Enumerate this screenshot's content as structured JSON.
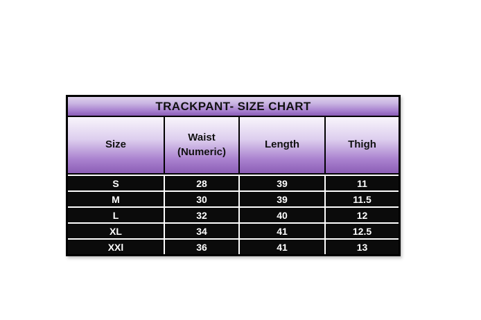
{
  "chart_data": {
    "type": "table",
    "title": "TRACKPANT- SIZE CHART",
    "columns": [
      "Size",
      "Waist (Numeric)",
      "Length",
      "Thigh"
    ],
    "rows": [
      [
        "S",
        "28",
        "39",
        "11"
      ],
      [
        "M",
        "30",
        "39",
        "11.5"
      ],
      [
        "L",
        "32",
        "40",
        "12"
      ],
      [
        "XL",
        "34",
        "41",
        "12.5"
      ],
      [
        "XXl",
        "36",
        "41",
        "13"
      ]
    ]
  },
  "table": {
    "title": "TRACKPANT- SIZE CHART",
    "headers": [
      "Size",
      "Waist\n(Numeric)",
      "Length",
      "Thigh"
    ]
  },
  "colors": {
    "title_gradient_top": "#ddd0ec",
    "title_gradient_bottom": "#8a5cb6",
    "header_gradient_top": "#f8f5fb",
    "header_gradient_bottom": "#8c5eb6",
    "row_background": "#0b0b0b",
    "row_text": "#ffffff",
    "border": "#000000",
    "row_separator": "#ffffff",
    "page_background": "#ffffff"
  }
}
